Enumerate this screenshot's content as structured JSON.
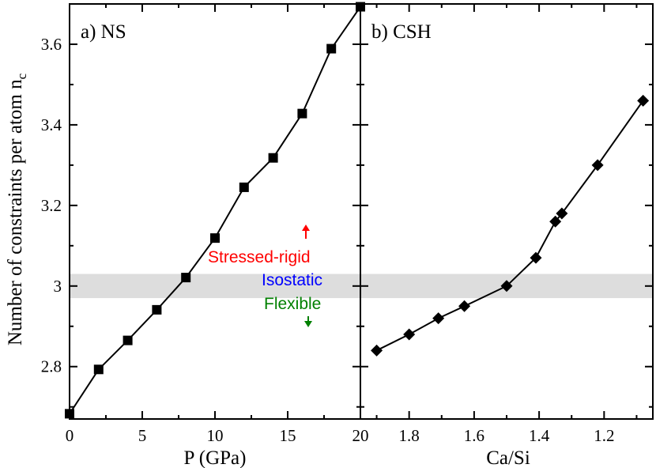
{
  "chart_data": [
    {
      "type": "line",
      "panel_label": "a) NS",
      "xlabel": "P (GPa)",
      "ylabel": "Number of constraints per atom n",
      "ylabel_sub": "c",
      "xlim": [
        0,
        20
      ],
      "ylim": [
        2.67,
        3.7
      ],
      "x_ticks": [
        0,
        5,
        10,
        15,
        20
      ],
      "x_tick_labels": [
        "0",
        "5",
        "10",
        "15",
        "20"
      ],
      "y_ticks": [
        2.8,
        3.0,
        3.2,
        3.4,
        3.6
      ],
      "y_tick_labels": [
        "2.8",
        "3",
        "3.2",
        "3.4",
        "3.6"
      ],
      "marker": "square",
      "series": [
        {
          "name": "NS",
          "x": [
            0,
            2,
            4,
            6,
            8,
            10,
            12,
            14,
            16,
            18,
            20
          ],
          "y": [
            2.683,
            2.793,
            2.865,
            2.941,
            3.021,
            3.119,
            3.245,
            3.318,
            3.428,
            3.589,
            3.693
          ]
        }
      ],
      "band": {
        "y_min": 2.97,
        "y_max": 3.03,
        "color": "#dddddd"
      },
      "annotations": [
        {
          "text": "Stressed-rigid",
          "color": "#ff0000",
          "arrow": "up"
        },
        {
          "text": "Isostatic",
          "color": "#0000ff"
        },
        {
          "text": "Flexible",
          "color": "#008000",
          "arrow": "down"
        }
      ]
    },
    {
      "type": "line",
      "panel_label": "b) CSH",
      "xlabel": "Ca/Si",
      "xlim": [
        1.95,
        1.05
      ],
      "ylim": [
        2.67,
        3.7
      ],
      "x_ticks": [
        1.8,
        1.6,
        1.4,
        1.2
      ],
      "x_tick_labels": [
        "1.8",
        "1.6",
        "1.4",
        "1.2"
      ],
      "marker": "diamond",
      "series": [
        {
          "name": "CSH",
          "x": [
            1.9,
            1.8,
            1.71,
            1.63,
            1.5,
            1.41,
            1.35,
            1.33,
            1.22,
            1.08
          ],
          "y": [
            2.84,
            2.88,
            2.92,
            2.95,
            3.0,
            3.07,
            3.16,
            3.18,
            3.3,
            3.46
          ]
        }
      ],
      "band": {
        "y_min": 2.97,
        "y_max": 3.03,
        "color": "#dddddd"
      }
    }
  ]
}
